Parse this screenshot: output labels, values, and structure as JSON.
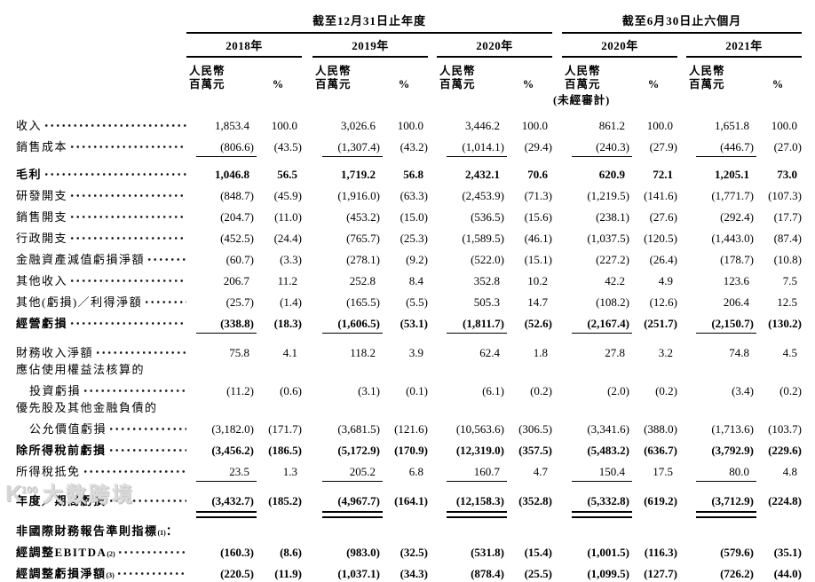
{
  "table": {
    "period_groups": [
      {
        "title": "截至12月31日止年度",
        "years": [
          "2018年",
          "2019年",
          "2020年"
        ]
      },
      {
        "title": "截至6月30日止六個月",
        "years": [
          "2020年",
          "2021年"
        ]
      }
    ],
    "col_headers": {
      "currency_line1": "人民幣",
      "currency_line2": "百萬元",
      "percent": "%",
      "unaudited": "(未經審計)"
    },
    "rows": [
      {
        "label": "收入",
        "values": [
          "1,853.4",
          "100.0",
          "3,026.6",
          "100.0",
          "3,446.2",
          "100.0",
          "861.2",
          "100.0",
          "1,651.8",
          "100.0"
        ]
      },
      {
        "label": "銷售成本",
        "rule": "single",
        "values": [
          "(806.6)",
          "(43.5)",
          "(1,307.4)",
          "(43.2)",
          "(1,014.1)",
          "(29.4)",
          "(240.3)",
          "(27.9)",
          "(446.7)",
          "(27.0)"
        ]
      },
      {
        "label": "毛利",
        "bold": true,
        "gap": "sm",
        "values": [
          "1,046.8",
          "56.5",
          "1,719.2",
          "56.8",
          "2,432.1",
          "70.6",
          "620.9",
          "72.1",
          "1,205.1",
          "73.0"
        ]
      },
      {
        "label": "研發開支",
        "values": [
          "(848.7)",
          "(45.9)",
          "(1,916.0)",
          "(63.3)",
          "(2,453.9)",
          "(71.3)",
          "(1,219.5)",
          "(141.6)",
          "(1,771.7)",
          "(107.3)"
        ]
      },
      {
        "label": "銷售開支",
        "values": [
          "(204.7)",
          "(11.0)",
          "(453.2)",
          "(15.0)",
          "(536.5)",
          "(15.6)",
          "(238.1)",
          "(27.6)",
          "(292.4)",
          "(17.7)"
        ]
      },
      {
        "label": "行政開支",
        "values": [
          "(452.5)",
          "(24.4)",
          "(765.7)",
          "(25.3)",
          "(1,589.5)",
          "(46.1)",
          "(1,037.5)",
          "(120.5)",
          "(1,443.0)",
          "(87.4)"
        ]
      },
      {
        "label": "金融資產減值虧損淨額",
        "values": [
          "(60.7)",
          "(3.3)",
          "(278.1)",
          "(9.2)",
          "(522.0)",
          "(15.1)",
          "(227.2)",
          "(26.4)",
          "(178.7)",
          "(10.8)"
        ]
      },
      {
        "label": "其他收入",
        "values": [
          "206.7",
          "11.2",
          "252.8",
          "8.4",
          "352.8",
          "10.2",
          "42.2",
          "4.9",
          "123.6",
          "7.5"
        ]
      },
      {
        "label": "其他(虧損)／利得淨額",
        "values": [
          "(25.7)",
          "(1.4)",
          "(165.5)",
          "(5.5)",
          "505.3",
          "14.7",
          "(108.2)",
          "(12.6)",
          "206.4",
          "12.5"
        ]
      },
      {
        "label": "經營虧損",
        "bold": true,
        "rule": "single",
        "values": [
          "(338.8)",
          "(18.3)",
          "(1,606.5)",
          "(53.1)",
          "(1,811.7)",
          "(52.6)",
          "(2,167.4)",
          "(251.7)",
          "(2,150.7)",
          "(130.2)"
        ]
      },
      {
        "label": "財務收入淨額",
        "gap": "md",
        "values": [
          "75.8",
          "4.1",
          "118.2",
          "3.9",
          "62.4",
          "1.8",
          "27.8",
          "3.2",
          "74.8",
          "4.5"
        ]
      },
      {
        "label_lines": [
          "應佔使用權益法核算的",
          "投資虧損"
        ],
        "values": [
          "(11.2)",
          "(0.6)",
          "(3.1)",
          "(0.1)",
          "(6.1)",
          "(0.2)",
          "(2.0)",
          "(0.2)",
          "(3.4)",
          "(0.2)"
        ]
      },
      {
        "label_lines": [
          "優先股及其他金融負債的",
          "公允價值虧損"
        ],
        "values": [
          "(3,182.0)",
          "(171.7)",
          "(3,681.5)",
          "(121.6)",
          "(10,563.6)",
          "(306.5)",
          "(3,341.6)",
          "(388.0)",
          "(1,713.6)",
          "(103.7)"
        ]
      },
      {
        "label": "除所得稅前虧損",
        "bold": true,
        "values": [
          "(3,456.2)",
          "(186.5)",
          "(5,172.9)",
          "(170.9)",
          "(12,319.0)",
          "(357.5)",
          "(5,483.2)",
          "(636.7)",
          "(3,792.9)",
          "(229.6)"
        ]
      },
      {
        "label": "所得稅抵免",
        "rule": "single",
        "values": [
          "23.5",
          "1.3",
          "205.2",
          "6.8",
          "160.7",
          "4.7",
          "150.4",
          "17.5",
          "80.0",
          "4.8"
        ]
      },
      {
        "label": "年度／期間虧損",
        "bold": true,
        "rule": "double",
        "gap": "md",
        "values": [
          "(3,432.7)",
          "(185.2)",
          "(4,967.7)",
          "(164.1)",
          "(12,158.3)",
          "(352.8)",
          "(5,332.8)",
          "(619.2)",
          "(3,712.9)",
          "(224.8)"
        ]
      },
      {
        "label": "非國際財務報告準則指標",
        "sup": "(1)",
        "after": "：",
        "bold": true,
        "gap": "lg",
        "values": []
      },
      {
        "label": "經調整EBITDA",
        "sup": "(2)",
        "bold": true,
        "values": [
          "(160.3)",
          "(8.6)",
          "(983.0)",
          "(32.5)",
          "(531.8)",
          "(15.4)",
          "(1,001.5)",
          "(116.3)",
          "(579.6)",
          "(35.1)"
        ]
      },
      {
        "label": "經調整虧損淨額",
        "sup": "(3)",
        "bold": true,
        "values": [
          "(220.5)",
          "(11.9)",
          "(1,037.1)",
          "(34.3)",
          "(878.4)",
          "(25.5)",
          "(1,099.5)",
          "(127.7)",
          "(726.2)",
          "(44.0)"
        ]
      }
    ]
  },
  "watermark": {
    "logo": "K",
    "logo_sup": "100",
    "text": "大数跨境"
  }
}
